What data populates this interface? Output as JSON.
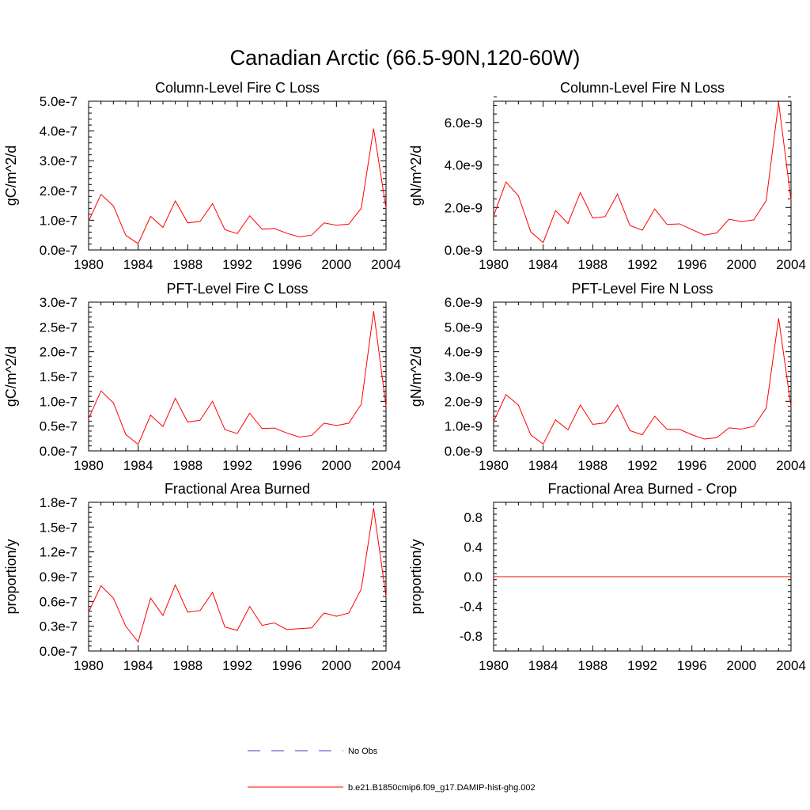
{
  "page": {
    "title": "Canadian Arctic (66.5-90N,120-60W)"
  },
  "legend": [
    {
      "label": "No Obs",
      "color": "#3f3fbf",
      "dashed": true
    },
    {
      "label": "b.e21.B1850cmip6.f09_g17.DAMIP-hist-ghg.002",
      "color": "#ff0000",
      "dashed": false
    }
  ],
  "chart_data": [
    {
      "type": "line",
      "title": "Column-Level Fire C Loss",
      "ylabel": "gC/m^2/d",
      "x": [
        1980,
        1981,
        1982,
        1983,
        1984,
        1985,
        1986,
        1987,
        1988,
        1989,
        1990,
        1991,
        1992,
        1993,
        1994,
        1995,
        1996,
        1997,
        1998,
        1999,
        2000,
        2001,
        2002,
        2003,
        2004
      ],
      "xlim": [
        1980,
        2004
      ],
      "xticks": [
        1980,
        1984,
        1988,
        1992,
        1996,
        2000,
        2004
      ],
      "xticklabels": [
        "1980",
        "1984",
        "1988",
        "1992",
        "1996",
        "2000",
        "2004"
      ],
      "ylim": [
        0,
        5e-07
      ],
      "yticks": [
        0,
        1e-07,
        2e-07,
        3e-07,
        4e-07,
        5e-07
      ],
      "yticklabels": [
        "0.0e-7",
        "1.0e-7",
        "2.0e-7",
        "3.0e-7",
        "4.0e-7",
        "5.0e-7"
      ],
      "series": [
        {
          "color": "#ff0000",
          "values": [
            9.7e-08,
            1.87e-07,
            1.48e-07,
            4.9e-08,
            2.1e-08,
            1.13e-07,
            7.6e-08,
            1.65e-07,
            9.1e-08,
            9.6e-08,
            1.56e-07,
            6.8e-08,
            5.5e-08,
            1.15e-07,
            7e-08,
            7.2e-08,
            5.6e-08,
            4.4e-08,
            5e-08,
            9.1e-08,
            8.3e-08,
            8.7e-08,
            1.4e-07,
            4.08e-07,
            1.4e-07
          ]
        }
      ]
    },
    {
      "type": "line",
      "title": "Column-Level Fire N Loss",
      "ylabel": "gN/m^2/d",
      "x": [
        1980,
        1981,
        1982,
        1983,
        1984,
        1985,
        1986,
        1987,
        1988,
        1989,
        1990,
        1991,
        1992,
        1993,
        1994,
        1995,
        1996,
        1997,
        1998,
        1999,
        2000,
        2001,
        2002,
        2003,
        2004
      ],
      "xlim": [
        1980,
        2004
      ],
      "xticks": [
        1980,
        1984,
        1988,
        1992,
        1996,
        2000,
        2004
      ],
      "xticklabels": [
        "1980",
        "1984",
        "1988",
        "1992",
        "1996",
        "2000",
        "2004"
      ],
      "ylim": [
        0,
        7e-09
      ],
      "yticks": [
        0,
        2e-09,
        4e-09,
        6e-09
      ],
      "yticklabels": [
        "0.0e-9",
        "2.0e-9",
        "4.0e-9",
        "6.0e-9"
      ],
      "series": [
        {
          "color": "#ff0000",
          "values": [
            1.6e-09,
            3.2e-09,
            2.55e-09,
            8.5e-10,
            3.5e-10,
            1.85e-09,
            1.25e-09,
            2.7e-09,
            1.5e-09,
            1.57e-09,
            2.63e-09,
            1.15e-09,
            9.3e-10,
            1.93e-09,
            1.2e-09,
            1.23e-09,
            9.6e-10,
            7e-10,
            8e-10,
            1.45e-09,
            1.33e-09,
            1.42e-09,
            2.33e-09,
            6.95e-09,
            2.35e-09
          ]
        }
      ]
    },
    {
      "type": "line",
      "title": "PFT-Level Fire C Loss",
      "ylabel": "gC/m^2/d",
      "x": [
        1980,
        1981,
        1982,
        1983,
        1984,
        1985,
        1986,
        1987,
        1988,
        1989,
        1990,
        1991,
        1992,
        1993,
        1994,
        1995,
        1996,
        1997,
        1998,
        1999,
        2000,
        2001,
        2002,
        2003,
        2004
      ],
      "xlim": [
        1980,
        2004
      ],
      "xticks": [
        1980,
        1984,
        1988,
        1992,
        1996,
        2000,
        2004
      ],
      "xticklabels": [
        "1980",
        "1984",
        "1988",
        "1992",
        "1996",
        "2000",
        "2004"
      ],
      "ylim": [
        0,
        3e-07
      ],
      "yticks": [
        0,
        5e-08,
        1e-07,
        1.5e-07,
        2e-07,
        2.5e-07,
        3e-07
      ],
      "yticklabels": [
        "0.0e-7",
        "0.5e-7",
        "1.0e-7",
        "1.5e-7",
        "2.0e-7",
        "2.5e-7",
        "3.0e-7"
      ],
      "series": [
        {
          "color": "#ff0000",
          "values": [
            6.5e-08,
            1.21e-07,
            9.7e-08,
            3.3e-08,
            1.3e-08,
            7.2e-08,
            4.9e-08,
            1.06e-07,
            5.8e-08,
            6.2e-08,
            1e-07,
            4.3e-08,
            3.5e-08,
            7.6e-08,
            4.5e-08,
            4.6e-08,
            3.6e-08,
            2.8e-08,
            3.1e-08,
            5.6e-08,
            5.1e-08,
            5.6e-08,
            9.4e-08,
            2.82e-07,
            9e-08
          ]
        }
      ]
    },
    {
      "type": "line",
      "title": "PFT-Level Fire N Loss",
      "ylabel": "gN/m^2/d",
      "x": [
        1980,
        1981,
        1982,
        1983,
        1984,
        1985,
        1986,
        1987,
        1988,
        1989,
        1990,
        1991,
        1992,
        1993,
        1994,
        1995,
        1996,
        1997,
        1998,
        1999,
        2000,
        2001,
        2002,
        2003,
        2004
      ],
      "xlim": [
        1980,
        2004
      ],
      "xticks": [
        1980,
        1984,
        1988,
        1992,
        1996,
        2000,
        2004
      ],
      "xticklabels": [
        "1980",
        "1984",
        "1988",
        "1992",
        "1996",
        "2000",
        "2004"
      ],
      "ylim": [
        0,
        6e-09
      ],
      "yticks": [
        0,
        1e-09,
        2e-09,
        3e-09,
        4e-09,
        5e-09,
        6e-09
      ],
      "yticklabels": [
        "0.0e-9",
        "1.0e-9",
        "2.0e-9",
        "3.0e-9",
        "4.0e-9",
        "5.0e-9",
        "6.0e-9"
      ],
      "series": [
        {
          "color": "#ff0000",
          "values": [
            1.18e-09,
            2.27e-09,
            1.85e-09,
            6.5e-10,
            2.7e-10,
            1.25e-09,
            8.5e-10,
            1.85e-09,
            1.07e-09,
            1.13e-09,
            1.85e-09,
            8.2e-10,
            6.5e-10,
            1.4e-09,
            8.7e-10,
            8.7e-10,
            6.5e-10,
            4.8e-10,
            5.3e-10,
            9.3e-10,
            8.8e-10,
            9.9e-10,
            1.73e-09,
            5.35e-09,
            1.78e-09
          ]
        }
      ]
    },
    {
      "type": "line",
      "title": "Fractional Area Burned",
      "ylabel": "proportion/y",
      "x": [
        1980,
        1981,
        1982,
        1983,
        1984,
        1985,
        1986,
        1987,
        1988,
        1989,
        1990,
        1991,
        1992,
        1993,
        1994,
        1995,
        1996,
        1997,
        1998,
        1999,
        2000,
        2001,
        2002,
        2003,
        2004
      ],
      "xlim": [
        1980,
        2004
      ],
      "xticks": [
        1980,
        1984,
        1988,
        1992,
        1996,
        2000,
        2004
      ],
      "xticklabels": [
        "1980",
        "1984",
        "1988",
        "1992",
        "1996",
        "2000",
        "2004"
      ],
      "ylim": [
        0,
        1.8e-07
      ],
      "yticks": [
        0,
        3e-08,
        6e-08,
        9e-08,
        1.2e-07,
        1.5e-07,
        1.8e-07
      ],
      "yticklabels": [
        "0.0e-7",
        "0.3e-7",
        "0.6e-7",
        "0.9e-7",
        "1.2e-7",
        "1.5e-7",
        "1.8e-7"
      ],
      "series": [
        {
          "color": "#ff0000",
          "values": [
            4.7e-08,
            7.9e-08,
            6.4e-08,
            3e-08,
            1.1e-08,
            6.4e-08,
            4.3e-08,
            8e-08,
            4.7e-08,
            4.9e-08,
            7.1e-08,
            2.9e-08,
            2.5e-08,
            5.4e-08,
            3.1e-08,
            3.4e-08,
            2.6e-08,
            2.7e-08,
            2.8e-08,
            4.6e-08,
            4.2e-08,
            4.6e-08,
            7.5e-08,
            1.73e-07,
            6.6e-08
          ]
        }
      ]
    },
    {
      "type": "line",
      "title": "Fractional Area Burned - Crop",
      "ylabel": "proportion/y",
      "x": [
        1980,
        1981,
        1982,
        1983,
        1984,
        1985,
        1986,
        1987,
        1988,
        1989,
        1990,
        1991,
        1992,
        1993,
        1994,
        1995,
        1996,
        1997,
        1998,
        1999,
        2000,
        2001,
        2002,
        2003,
        2004
      ],
      "xlim": [
        1980,
        2004
      ],
      "xticks": [
        1980,
        1984,
        1988,
        1992,
        1996,
        2000,
        2004
      ],
      "xticklabels": [
        "1980",
        "1984",
        "1988",
        "1992",
        "1996",
        "2000",
        "2004"
      ],
      "ylim": [
        -1.0,
        1.0
      ],
      "yticks": [
        -0.8,
        -0.4,
        0.0,
        0.4,
        0.8
      ],
      "yticklabels": [
        "-0.8",
        "-0.4",
        "0.0",
        "0.4",
        "0.8"
      ],
      "series": [
        {
          "color": "#ff0000",
          "values": [
            0,
            0,
            0,
            0,
            0,
            0,
            0,
            0,
            0,
            0,
            0,
            0,
            0,
            0,
            0,
            0,
            0,
            0,
            0,
            0,
            0,
            0,
            0,
            0,
            0
          ]
        }
      ]
    }
  ]
}
